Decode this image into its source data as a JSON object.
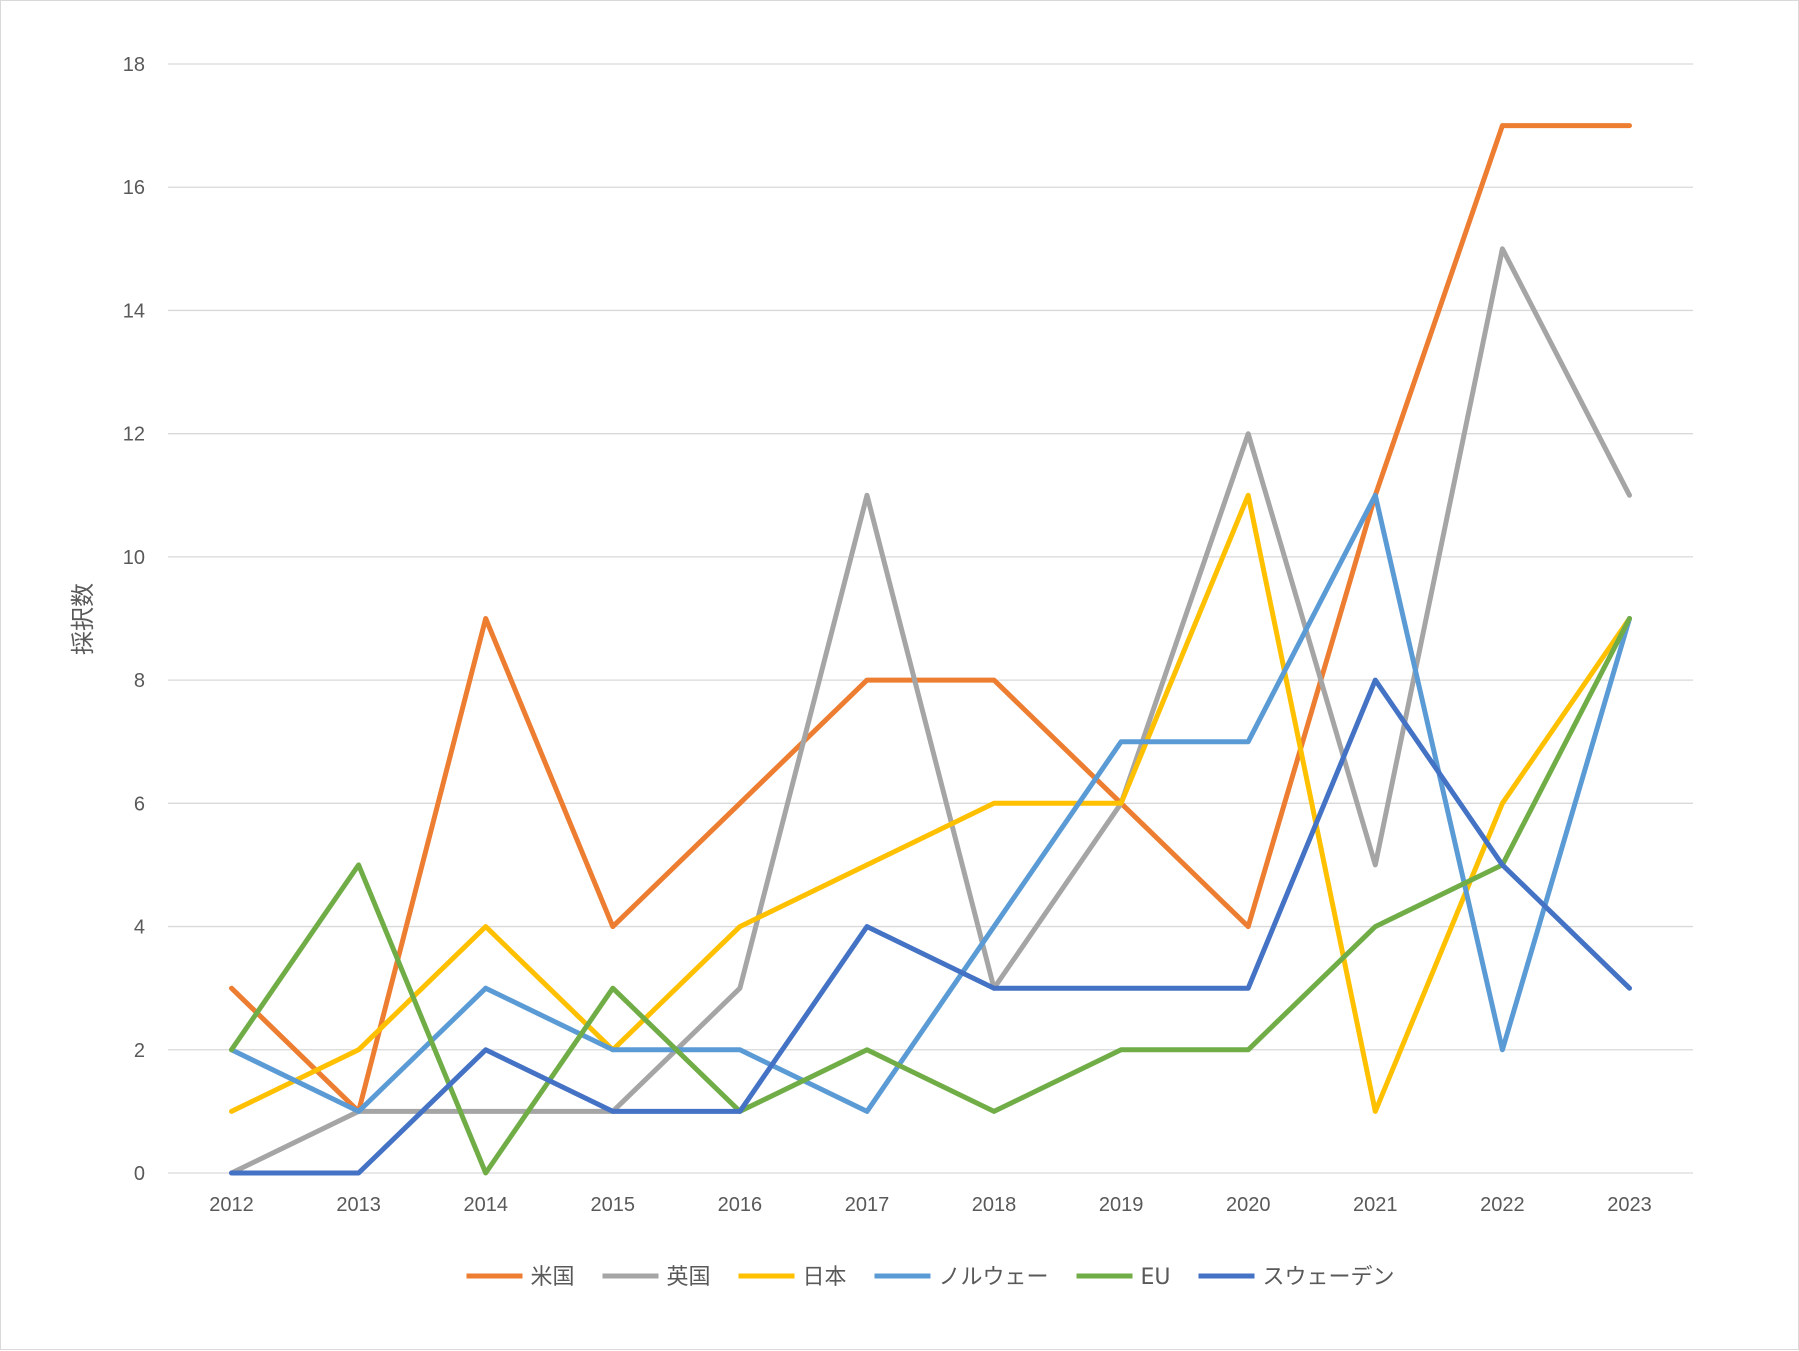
{
  "chart_data": {
    "type": "line",
    "title": "",
    "xlabel": "",
    "ylabel": "採択数",
    "ylim": [
      0,
      18
    ],
    "y_ticks": [
      0,
      2,
      4,
      6,
      8,
      10,
      12,
      14,
      16,
      18
    ],
    "grid": true,
    "legend_position": "bottom",
    "categories": [
      "2012",
      "2013",
      "2014",
      "2015",
      "2016",
      "2017",
      "2018",
      "2019",
      "2020",
      "2021",
      "2022",
      "2023"
    ],
    "series": [
      {
        "name": "米国",
        "color": "#ED7D31",
        "values": [
          3,
          1,
          9,
          4,
          6,
          8,
          8,
          6,
          4,
          11,
          17,
          17
        ]
      },
      {
        "name": "英国",
        "color": "#A5A5A5",
        "values": [
          0,
          1,
          1,
          1,
          3,
          11,
          3,
          6,
          12,
          5,
          15,
          11
        ]
      },
      {
        "name": "日本",
        "color": "#FFC000",
        "values": [
          1,
          2,
          4,
          2,
          4,
          5,
          6,
          6,
          11,
          1,
          6,
          9
        ]
      },
      {
        "name": "ノルウェー",
        "color": "#5B9BD5",
        "values": [
          2,
          1,
          3,
          2,
          2,
          1,
          4,
          7,
          7,
          11,
          2,
          9
        ]
      },
      {
        "name": "EU",
        "color": "#70AD47",
        "values": [
          2,
          5,
          0,
          3,
          1,
          2,
          1,
          2,
          2,
          4,
          5,
          9
        ]
      },
      {
        "name": "スウェーデン",
        "color": "#4472C4",
        "values": [
          0,
          0,
          2,
          1,
          1,
          4,
          3,
          3,
          3,
          8,
          5,
          3
        ]
      }
    ]
  }
}
